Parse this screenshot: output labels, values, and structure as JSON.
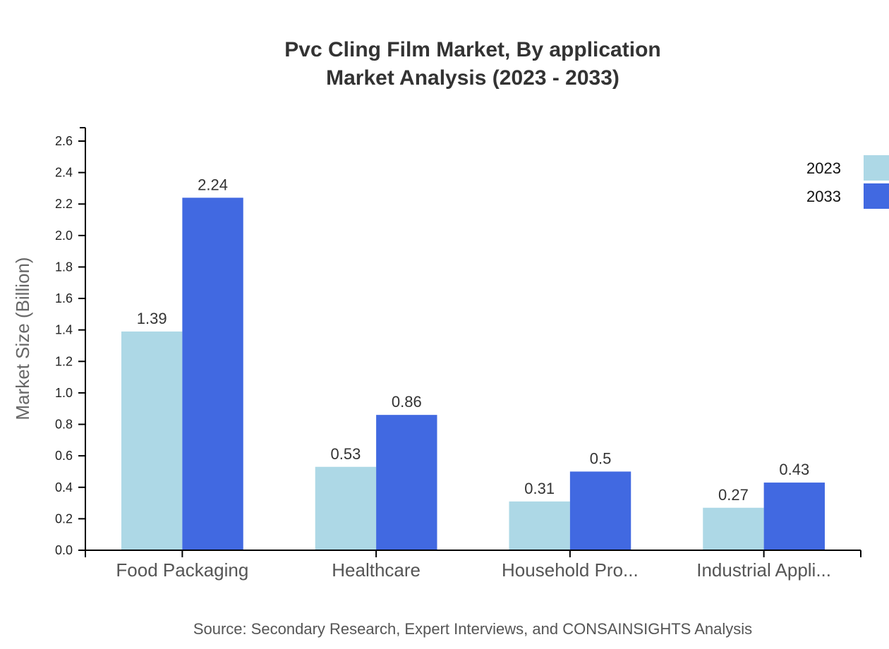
{
  "chart_data": {
    "type": "bar",
    "title": "Pvc Cling Film Market, By application",
    "subtitle": "Market Analysis (2023 - 2033)",
    "xlabel": "",
    "ylabel": "Market Size (Billion)",
    "ylim": [
      0,
      2.6
    ],
    "yticks": [
      "0.0",
      "0.2",
      "0.4",
      "0.6",
      "0.8",
      "1.0",
      "1.2",
      "1.4",
      "1.6",
      "1.8",
      "2.0",
      "2.2",
      "2.4",
      "2.6"
    ],
    "grid": false,
    "legend_position": "top-right",
    "categories": [
      "Food Packaging",
      "Healthcare",
      "Household Pro...",
      "Industrial Appli..."
    ],
    "series": [
      {
        "name": "2023",
        "color": "#add8e6",
        "values": [
          1.39,
          0.53,
          0.31,
          0.27
        ]
      },
      {
        "name": "2033",
        "color": "#4169e1",
        "values": [
          2.24,
          0.86,
          0.5,
          0.43
        ]
      }
    ],
    "source": "Source: Secondary Research, Expert Interviews, and CONSAINSIGHTS Analysis"
  }
}
